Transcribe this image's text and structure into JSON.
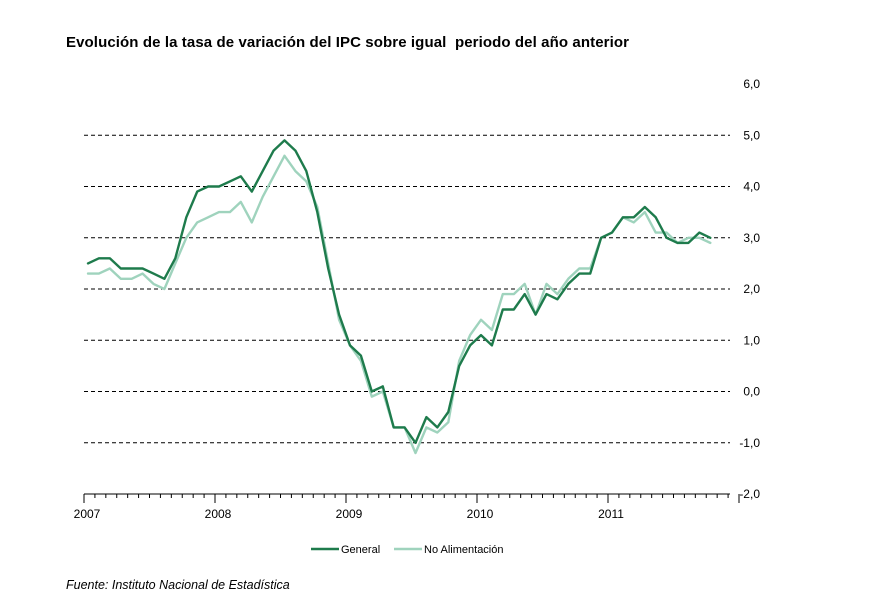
{
  "chart_data": {
    "type": "line",
    "title": "Evolución de la tasa de variación del IPC sobre igual  periodo del año anterior",
    "xlabel": "",
    "ylabel": "",
    "ylim": [
      -2.0,
      6.0
    ],
    "y_ticks": [
      "-2,0",
      "-1,0",
      "0,0",
      "1,0",
      "2,0",
      "3,0",
      "4,0",
      "5,0",
      "6,0"
    ],
    "x_ticks": [
      "2007",
      "2008",
      "2009",
      "2010",
      "2011"
    ],
    "grid": "horizontal dashed",
    "legend_position": "bottom-center",
    "x": [
      "2007-01",
      "2007-02",
      "2007-03",
      "2007-04",
      "2007-05",
      "2007-06",
      "2007-07",
      "2007-08",
      "2007-09",
      "2007-10",
      "2007-11",
      "2007-12",
      "2008-01",
      "2008-02",
      "2008-03",
      "2008-04",
      "2008-05",
      "2008-06",
      "2008-07",
      "2008-08",
      "2008-09",
      "2008-10",
      "2008-11",
      "2008-12",
      "2009-01",
      "2009-02",
      "2009-03",
      "2009-04",
      "2009-05",
      "2009-06",
      "2009-07",
      "2009-08",
      "2009-09",
      "2009-10",
      "2009-11",
      "2009-12",
      "2010-01",
      "2010-02",
      "2010-03",
      "2010-04",
      "2010-05",
      "2010-06",
      "2010-07",
      "2010-08",
      "2010-09",
      "2010-10",
      "2010-11",
      "2010-12",
      "2011-01",
      "2011-02",
      "2011-03",
      "2011-04",
      "2011-05",
      "2011-06",
      "2011-07",
      "2011-08",
      "2011-09",
      "2011-10"
    ],
    "series": [
      {
        "name": "General",
        "color": "#1e7b4c",
        "values": [
          2.5,
          2.6,
          2.6,
          2.4,
          2.4,
          2.4,
          2.3,
          2.2,
          2.6,
          3.4,
          3.9,
          4.0,
          4.0,
          4.1,
          4.2,
          3.9,
          4.3,
          4.7,
          4.9,
          4.7,
          4.3,
          3.5,
          2.4,
          1.5,
          0.9,
          0.7,
          0.0,
          0.1,
          -0.7,
          -0.7,
          -1.0,
          -0.5,
          -0.7,
          -0.4,
          0.5,
          0.9,
          1.1,
          0.9,
          1.6,
          1.6,
          1.9,
          1.5,
          1.9,
          1.8,
          2.1,
          2.3,
          2.3,
          3.0,
          3.1,
          3.4,
          3.4,
          3.6,
          3.4,
          3.0,
          2.9,
          2.9,
          3.1,
          3.0
        ]
      },
      {
        "name": "No Alimentación",
        "color": "#9fd3bd",
        "values": [
          2.3,
          2.3,
          2.4,
          2.2,
          2.2,
          2.3,
          2.1,
          2.0,
          2.5,
          3.0,
          3.3,
          3.4,
          3.5,
          3.5,
          3.7,
          3.3,
          3.8,
          4.2,
          4.6,
          4.3,
          4.1,
          3.6,
          2.5,
          1.4,
          0.9,
          0.6,
          -0.1,
          0.0,
          -0.7,
          -0.7,
          -1.2,
          -0.7,
          -0.8,
          -0.6,
          0.6,
          1.1,
          1.4,
          1.2,
          1.9,
          1.9,
          2.1,
          1.5,
          2.1,
          1.9,
          2.2,
          2.4,
          2.4,
          3.0,
          3.1,
          3.4,
          3.3,
          3.5,
          3.1,
          3.1,
          2.9,
          3.0,
          3.0,
          2.9
        ]
      }
    ]
  },
  "source_note": "Fuente: Instituto Nacional de Estadística"
}
